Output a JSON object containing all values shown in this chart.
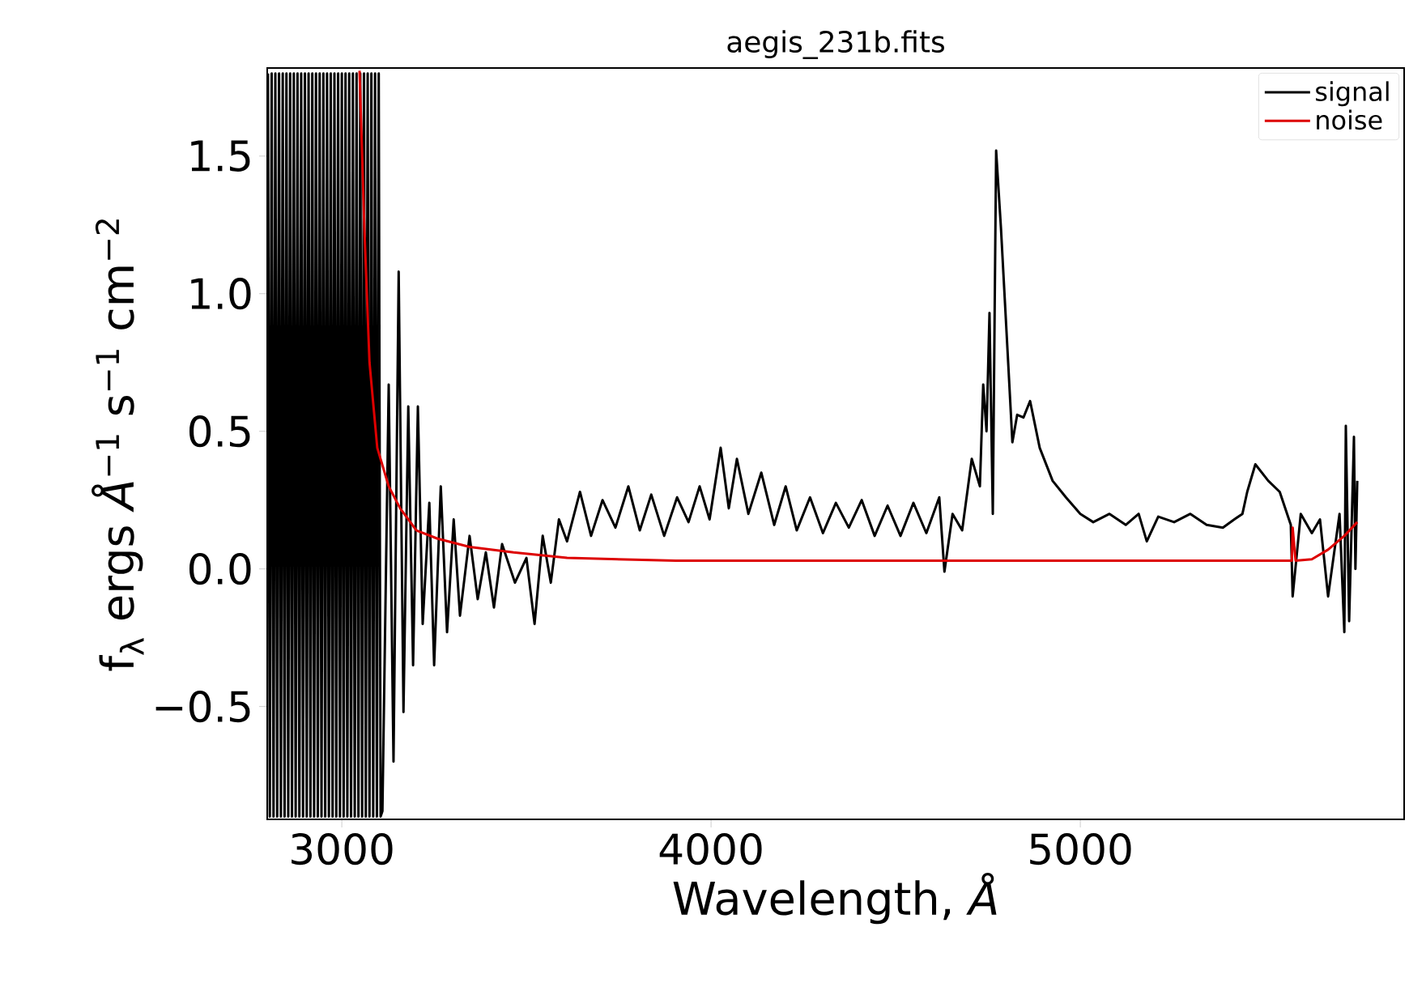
{
  "chart_data": {
    "type": "line",
    "title": "aegis_231b.fits",
    "xlabel": "Wavelength, *Å*",
    "ylabel": "f$_{λ}$  ergs *Å*$^{−1}$ s$^{−1}$ cm$^{−2}$",
    "xlim": [
      2798,
      5877
    ],
    "ylim": [
      -0.91,
      1.82
    ],
    "xticks": [
      3000,
      4000,
      5000
    ],
    "yticks": [
      {
        "value": -0.5,
        "label": "−0.5"
      },
      {
        "value": 0,
        "label": "0.0"
      },
      {
        "value": 0.5,
        "label": "0.5"
      },
      {
        "value": 1.0,
        "label": "1.0"
      },
      {
        "value": 1.5,
        "label": "1.5"
      }
    ],
    "grid": false,
    "legend": "top right",
    "line_style": "solid",
    "marker": "none",
    "series": [
      {
        "name": "signal",
        "color": "#000000",
        "x": [
          2800,
          2805,
          2810,
          2815,
          2820,
          2825,
          2830,
          2835,
          2840,
          2845,
          2850,
          2855,
          2860,
          2865,
          2870,
          2875,
          2880,
          2885,
          2890,
          2895,
          2900,
          2905,
          2910,
          2915,
          2920,
          2925,
          2930,
          2935,
          2940,
          2945,
          2950,
          2955,
          2960,
          2965,
          2970,
          2975,
          2980,
          2985,
          2990,
          2995,
          3000,
          3005,
          3010,
          3015,
          3020,
          3025,
          3030,
          3035,
          3040,
          3045,
          3050,
          3055,
          3060,
          3065,
          3070,
          3075,
          3080,
          3085,
          3090,
          3095,
          3100,
          3105,
          3110,
          3127,
          3140,
          3154,
          3167,
          3180,
          3193,
          3206,
          3219,
          3237,
          3250,
          3268,
          3285,
          3303,
          3320,
          3346,
          3368,
          3390,
          3412,
          3434,
          3469,
          3500,
          3522,
          3544,
          3566,
          3588,
          3610,
          3645,
          3675,
          3706,
          3741,
          3776,
          3807,
          3838,
          3873,
          3908,
          3939,
          3969,
          3996,
          4026,
          4048,
          4070,
          4101,
          4136,
          4171,
          4202,
          4232,
          4268,
          4303,
          4338,
          4373,
          4408,
          4443,
          4478,
          4513,
          4548,
          4583,
          4618,
          4632,
          4654,
          4680,
          4706,
          4728,
          4737,
          4746,
          4754,
          4763,
          4772,
          4785,
          4803,
          4816,
          4829,
          4846,
          4864,
          4890,
          4925,
          4961,
          5000,
          5035,
          5079,
          5123,
          5158,
          5180,
          5211,
          5254,
          5298,
          5342,
          5386,
          5417,
          5439,
          5452,
          5474,
          5509,
          5540,
          5570,
          5575,
          5597,
          5627,
          5649,
          5671,
          5702,
          5715,
          5719,
          5728,
          5741,
          5745,
          5750
        ],
        "values": [
          1.8,
          -0.9,
          1.8,
          -0.9,
          1.8,
          -0.9,
          1.8,
          -0.9,
          1.8,
          -0.9,
          1.8,
          -0.9,
          1.8,
          -0.9,
          1.8,
          -0.9,
          1.8,
          -0.9,
          1.8,
          -0.9,
          1.8,
          -0.9,
          1.8,
          -0.9,
          1.8,
          -0.9,
          1.8,
          -0.9,
          1.8,
          -0.9,
          1.8,
          -0.9,
          1.8,
          -0.9,
          1.8,
          -0.9,
          1.8,
          -0.9,
          1.8,
          -0.9,
          1.8,
          -0.9,
          1.8,
          -0.9,
          1.8,
          -0.9,
          1.8,
          -0.9,
          1.8,
          -0.9,
          1.8,
          -0.9,
          1.8,
          -0.9,
          1.8,
          -0.9,
          1.8,
          -0.9,
          1.8,
          -0.9,
          1.8,
          -0.9,
          -0.88,
          0.67,
          -0.7,
          1.08,
          -0.52,
          0.59,
          -0.35,
          0.59,
          -0.2,
          0.24,
          -0.35,
          0.3,
          -0.23,
          0.18,
          -0.17,
          0.12,
          -0.11,
          0.06,
          -0.14,
          0.09,
          -0.05,
          0.04,
          -0.2,
          0.12,
          -0.05,
          0.18,
          0.1,
          0.28,
          0.12,
          0.25,
          0.15,
          0.3,
          0.14,
          0.27,
          0.12,
          0.26,
          0.17,
          0.3,
          0.18,
          0.44,
          0.22,
          0.4,
          0.2,
          0.35,
          0.16,
          0.3,
          0.14,
          0.26,
          0.13,
          0.24,
          0.15,
          0.25,
          0.12,
          0.23,
          0.12,
          0.24,
          0.13,
          0.26,
          -0.01,
          0.2,
          0.14,
          0.4,
          0.3,
          0.67,
          0.5,
          0.93,
          0.2,
          1.52,
          1.24,
          0.79,
          0.46,
          0.56,
          0.55,
          0.61,
          0.44,
          0.32,
          0.26,
          0.2,
          0.17,
          0.2,
          0.16,
          0.2,
          0.1,
          0.19,
          0.17,
          0.2,
          0.16,
          0.15,
          0.18,
          0.2,
          0.28,
          0.38,
          0.32,
          0.28,
          0.16,
          -0.1,
          0.2,
          0.13,
          0.18,
          -0.1,
          0.2,
          -0.23,
          0.52,
          -0.19,
          0.48,
          0.0,
          0.32
        ]
      },
      {
        "name": "noise",
        "color": "#dd0000",
        "x": [
          3048,
          3061,
          3075,
          3096,
          3127,
          3158,
          3202,
          3259,
          3346,
          3465,
          3610,
          3904,
          4300,
          4700,
          5100,
          5553,
          5573,
          5575,
          5583,
          5627,
          5671,
          5715,
          5750
        ],
        "values": [
          1.81,
          1.24,
          0.75,
          0.44,
          0.3,
          0.22,
          0.14,
          0.11,
          0.08,
          0.06,
          0.04,
          0.03,
          0.03,
          0.03,
          0.03,
          0.03,
          0.03,
          0.15,
          0.03,
          0.035,
          0.07,
          0.12,
          0.17
        ]
      }
    ]
  }
}
